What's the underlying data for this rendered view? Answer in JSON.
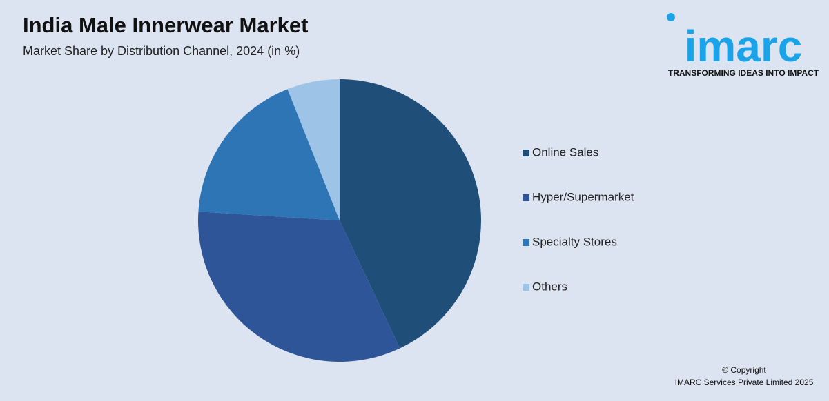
{
  "chart_data": {
    "type": "pie",
    "title": "India Male Innerwear Market",
    "subtitle": "Market Share by Distribution Channel, 2024 (in %)",
    "categories": [
      "Online Sales",
      "Hyper/Supermarket",
      "Specialty Stores",
      "Others"
    ],
    "values": [
      43,
      33,
      18,
      6
    ],
    "colors": [
      "#1f4e79",
      "#2e5597",
      "#2e75b6",
      "#9dc3e6"
    ],
    "legend": "right"
  },
  "logo": {
    "name": "imarc",
    "tagline": "TRANSFORMING IDEAS INTO IMPACT"
  },
  "copyright": {
    "line1": "© Copyright",
    "line2": "IMARC Services Private Limited 2025"
  }
}
